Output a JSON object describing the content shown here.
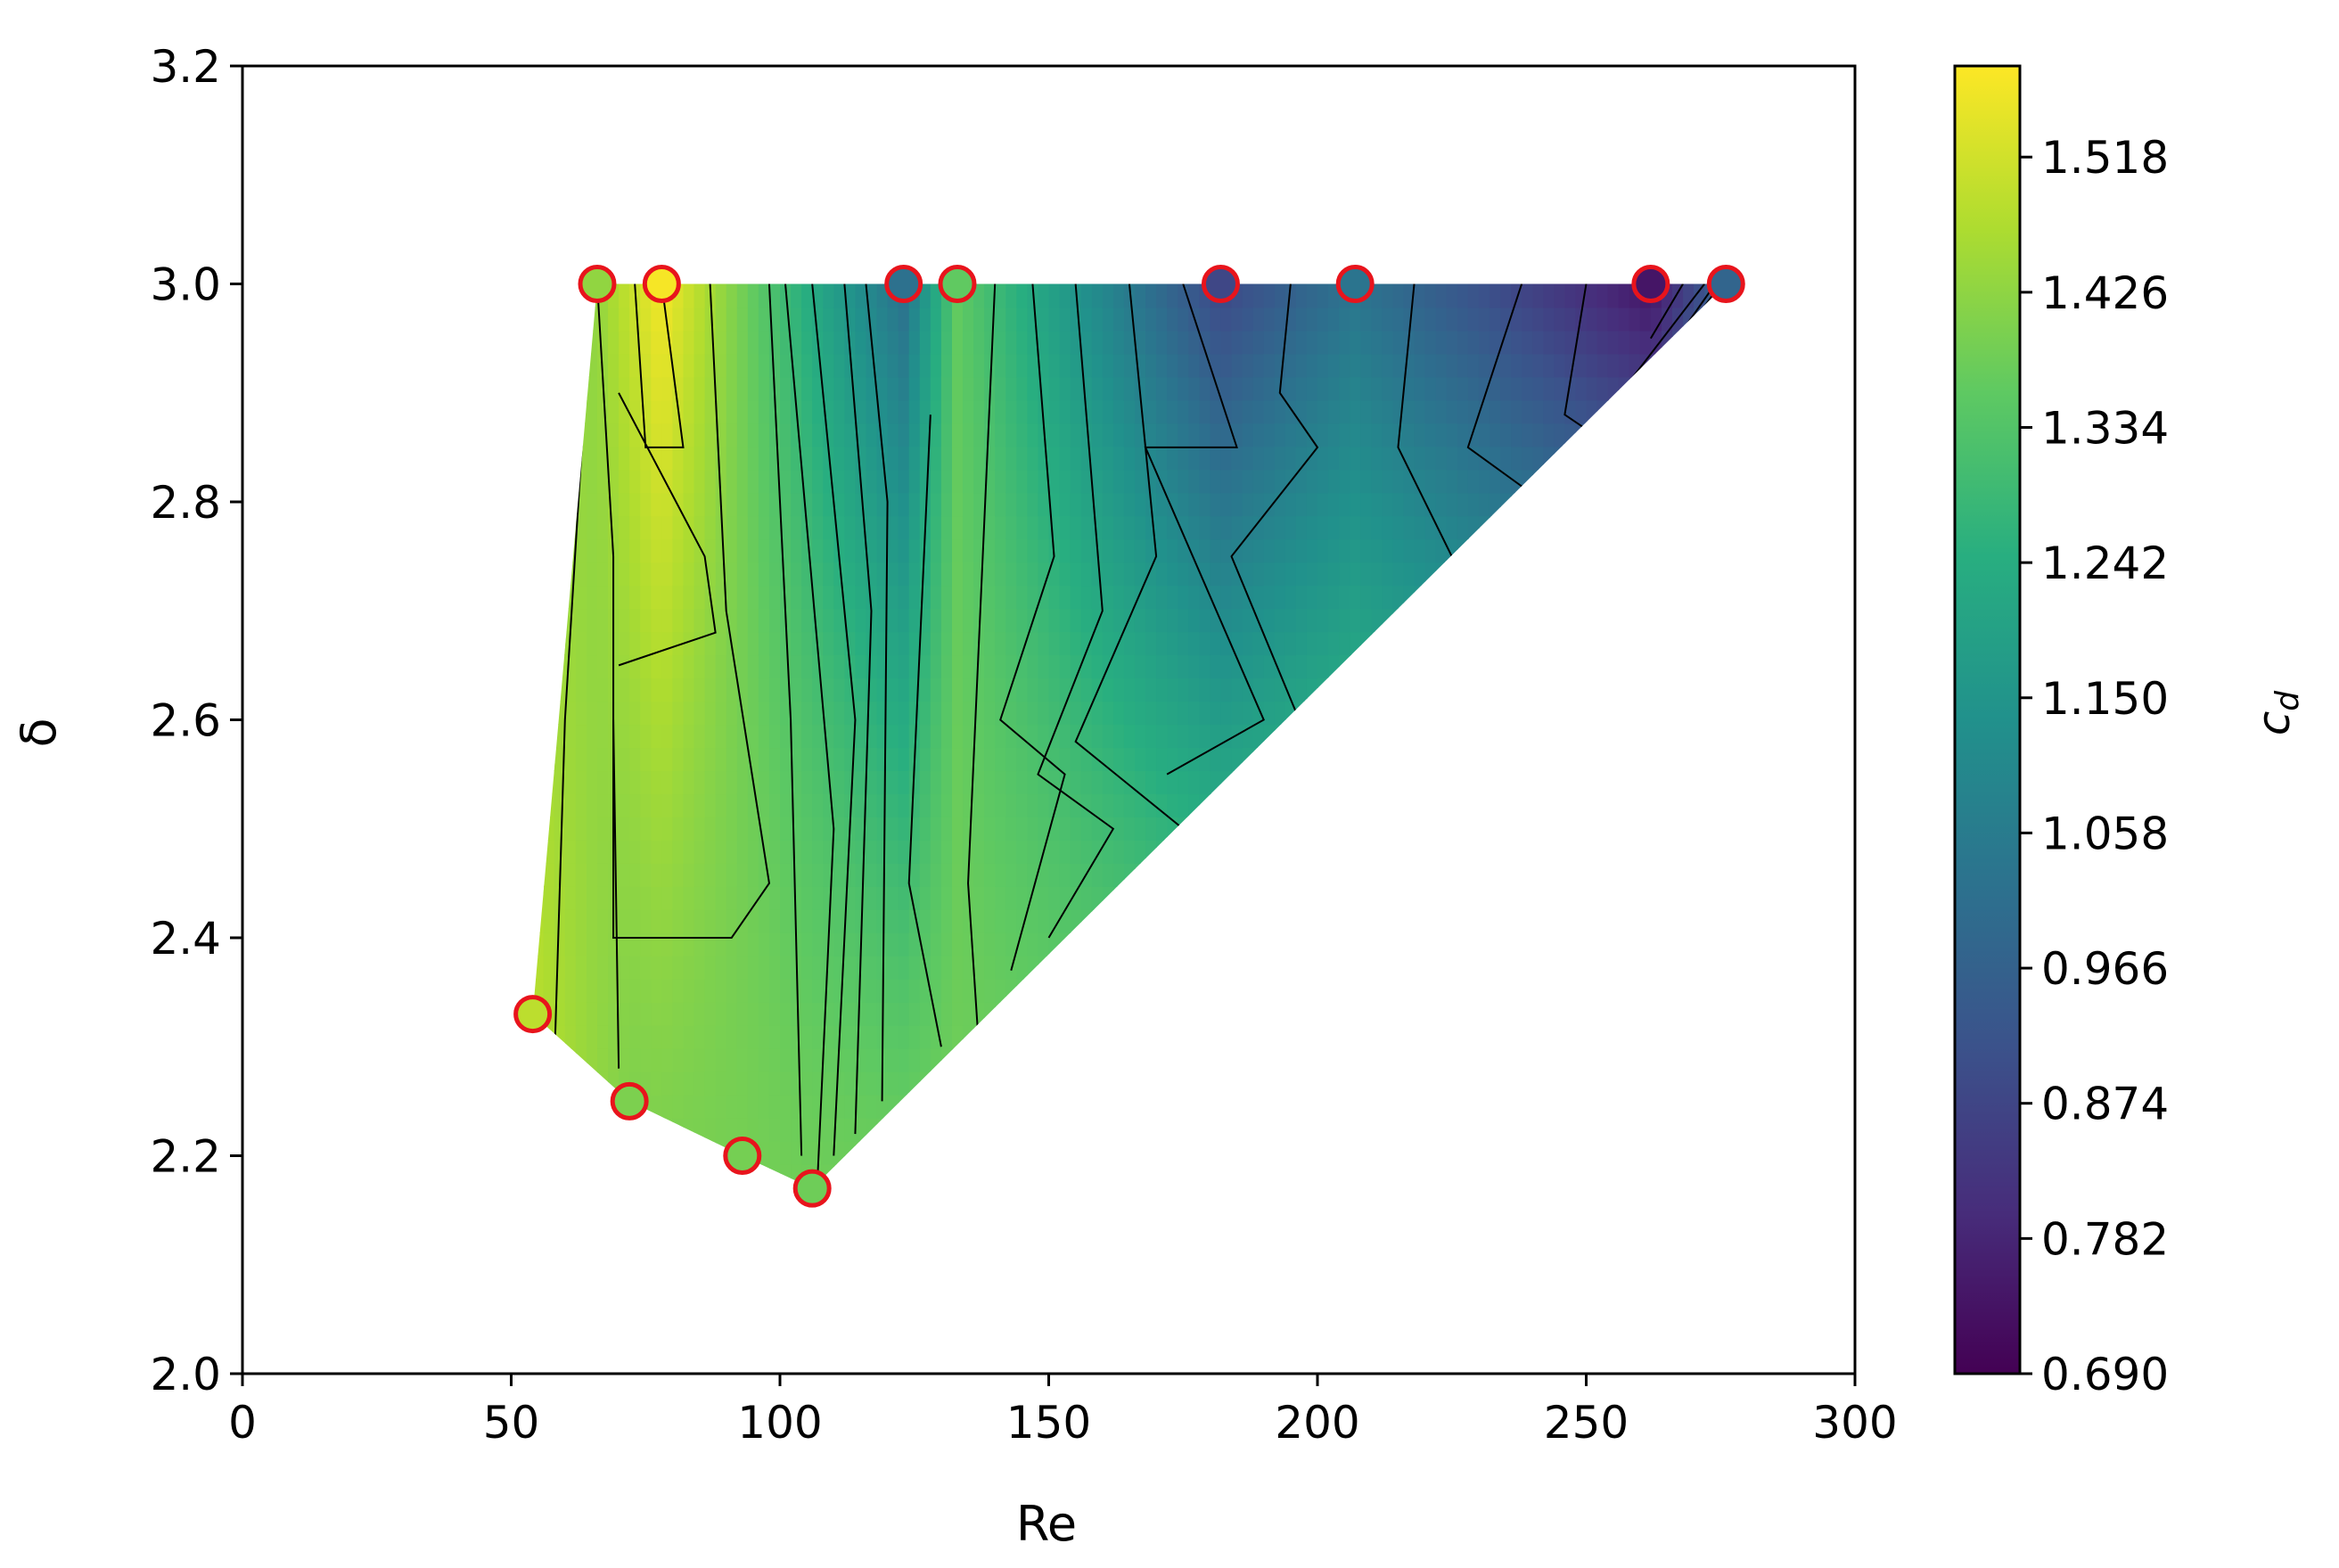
{
  "chart_data": {
    "type": "contour",
    "title": "",
    "xlabel": "Re",
    "ylabel": "δ",
    "xlim": [
      0,
      300
    ],
    "ylim": [
      2.0,
      3.2
    ],
    "xticks": [
      "0",
      "50",
      "100",
      "150",
      "200",
      "250",
      "300"
    ],
    "yticks": [
      "2.0",
      "2.2",
      "2.4",
      "2.6",
      "2.8",
      "3.0",
      "3.2"
    ],
    "colorbar": {
      "label": "c",
      "label_subscript": "d",
      "colormap": "viridis",
      "range": [
        0.69,
        1.58
      ],
      "ticks": [
        "0.690",
        "0.782",
        "0.874",
        "0.966",
        "1.058",
        "1.150",
        "1.242",
        "1.334",
        "1.426",
        "1.518"
      ]
    },
    "points": [
      {
        "re": 54,
        "delta": 2.33,
        "cd": 1.49
      },
      {
        "re": 72,
        "delta": 2.25,
        "cd": 1.4
      },
      {
        "re": 93,
        "delta": 2.2,
        "cd": 1.39
      },
      {
        "re": 106,
        "delta": 2.17,
        "cd": 1.38
      },
      {
        "re": 66,
        "delta": 3.0,
        "cd": 1.43
      },
      {
        "re": 78,
        "delta": 3.0,
        "cd": 1.57
      },
      {
        "re": 123,
        "delta": 3.0,
        "cd": 1.02
      },
      {
        "re": 133,
        "delta": 3.0,
        "cd": 1.36
      },
      {
        "re": 182,
        "delta": 3.0,
        "cd": 0.88
      },
      {
        "re": 207,
        "delta": 3.0,
        "cd": 1.03
      },
      {
        "re": 262,
        "delta": 3.0,
        "cd": 0.74
      },
      {
        "re": 276,
        "delta": 3.0,
        "cd": 0.98
      }
    ],
    "marker_edge_color": "#e8141c",
    "contour_line_color": "#000000"
  }
}
